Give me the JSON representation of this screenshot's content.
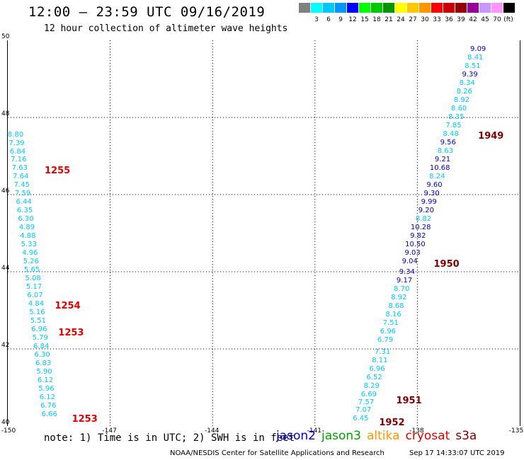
{
  "header": {
    "title": "12:00 – 23:59 UTC 09/16/2019",
    "subtitle": "12 hour collection of altimeter wave heights"
  },
  "colorbar": {
    "unit": "(ft)",
    "bins": [
      {
        "label": "",
        "color": "#808080"
      },
      {
        "label": "3",
        "color": "#00ffff"
      },
      {
        "label": "6",
        "color": "#00c8ff"
      },
      {
        "label": "9",
        "color": "#0096ff"
      },
      {
        "label": "12",
        "color": "#0000ff"
      },
      {
        "label": "15",
        "color": "#00ff00"
      },
      {
        "label": "18",
        "color": "#00c800"
      },
      {
        "label": "21",
        "color": "#009600"
      },
      {
        "label": "24",
        "color": "#ffff00"
      },
      {
        "label": "27",
        "color": "#ffc800"
      },
      {
        "label": "30",
        "color": "#ff9600"
      },
      {
        "label": "33",
        "color": "#ff0000"
      },
      {
        "label": "36",
        "color": "#c80000"
      },
      {
        "label": "39",
        "color": "#960000"
      },
      {
        "label": "42",
        "color": "#960096"
      },
      {
        "label": "45",
        "color": "#c896ff"
      },
      {
        "label": "70",
        "color": "#ff96ff"
      },
      {
        "label": "",
        "color": "#000000"
      }
    ]
  },
  "axes": {
    "lat_labels": [
      "50",
      "48",
      "46",
      "44",
      "42",
      "40"
    ],
    "lon_labels": [
      "-150",
      "-147",
      "-144",
      "-141",
      "-138",
      "-135"
    ]
  },
  "map_data": {
    "extent": {
      "lon": [
        -150,
        -135
      ],
      "lat": [
        40,
        50
      ]
    },
    "tracks": [
      {
        "satellite": "jason3_left",
        "color": "#00c8ff",
        "points": [
          {
            "lon": -149.75,
            "lat": 47.55,
            "v": "8.80"
          },
          {
            "lon": -149.72,
            "lat": 47.33,
            "v": "7.39"
          },
          {
            "lon": -149.69,
            "lat": 47.11,
            "v": "6.84"
          },
          {
            "lon": -149.66,
            "lat": 46.89,
            "v": "7.16"
          },
          {
            "lon": -149.63,
            "lat": 46.67,
            "v": "7.63"
          },
          {
            "lon": -149.6,
            "lat": 46.45,
            "v": "7.64"
          },
          {
            "lon": -149.57,
            "lat": 46.23,
            "v": "7.45"
          },
          {
            "lon": -149.54,
            "lat": 46.01,
            "v": "7.59"
          },
          {
            "lon": -149.51,
            "lat": 45.79,
            "v": "6.44"
          },
          {
            "lon": -149.48,
            "lat": 45.57,
            "v": "6.35"
          },
          {
            "lon": -149.45,
            "lat": 45.35,
            "v": "6.30"
          },
          {
            "lon": -149.42,
            "lat": 45.13,
            "v": "4.89"
          },
          {
            "lon": -149.39,
            "lat": 44.91,
            "v": "4.88"
          },
          {
            "lon": -149.36,
            "lat": 44.69,
            "v": "5.33"
          },
          {
            "lon": -149.33,
            "lat": 44.47,
            "v": "4.96"
          },
          {
            "lon": -149.3,
            "lat": 44.25,
            "v": "5.26"
          },
          {
            "lon": -149.27,
            "lat": 44.03,
            "v": "5.65"
          },
          {
            "lon": -149.24,
            "lat": 43.81,
            "v": "5.08"
          },
          {
            "lon": -149.21,
            "lat": 43.59,
            "v": "5.17"
          },
          {
            "lon": -149.18,
            "lat": 43.37,
            "v": "6.07"
          },
          {
            "lon": -149.15,
            "lat": 43.15,
            "v": "4.84"
          },
          {
            "lon": -149.12,
            "lat": 42.93,
            "v": "5.16"
          },
          {
            "lon": -149.09,
            "lat": 42.71,
            "v": "5.51"
          },
          {
            "lon": -149.06,
            "lat": 42.49,
            "v": "6.96"
          },
          {
            "lon": -149.03,
            "lat": 42.27,
            "v": "5.79"
          },
          {
            "lon": -149.0,
            "lat": 42.05,
            "v": "6.84"
          },
          {
            "lon": -148.97,
            "lat": 41.83,
            "v": "6.30"
          },
          {
            "lon": -148.94,
            "lat": 41.61,
            "v": "6.83"
          },
          {
            "lon": -148.91,
            "lat": 41.39,
            "v": "5.90"
          },
          {
            "lon": -148.88,
            "lat": 41.17,
            "v": "6.12"
          },
          {
            "lon": -148.85,
            "lat": 40.95,
            "v": "5.96"
          },
          {
            "lon": -148.82,
            "lat": 40.73,
            "v": "6.12"
          },
          {
            "lon": -148.79,
            "lat": 40.51,
            "v": "6.76"
          },
          {
            "lon": -148.76,
            "lat": 40.29,
            "v": "6.66"
          }
        ]
      },
      {
        "satellite": "mixed_right",
        "points": [
          {
            "lon": -136.2,
            "lat": 49.76,
            "v": "9.09",
            "c": "#0000c8"
          },
          {
            "lon": -136.28,
            "lat": 49.54,
            "v": "8.41",
            "c": "#00c8ff"
          },
          {
            "lon": -136.36,
            "lat": 49.32,
            "v": "8.51",
            "c": "#00c8ff"
          },
          {
            "lon": -136.44,
            "lat": 49.1,
            "v": "9.39",
            "c": "#0000c8"
          },
          {
            "lon": -136.52,
            "lat": 48.88,
            "v": "8.34",
            "c": "#00c8ff"
          },
          {
            "lon": -136.6,
            "lat": 48.66,
            "v": "8.26",
            "c": "#00c8ff"
          },
          {
            "lon": -136.68,
            "lat": 48.44,
            "v": "8.92",
            "c": "#00c8ff"
          },
          {
            "lon": -136.76,
            "lat": 48.22,
            "v": "8.60",
            "c": "#00c8ff"
          },
          {
            "lon": -136.84,
            "lat": 48.0,
            "v": "8.35",
            "c": "#00c8ff"
          },
          {
            "lon": -136.92,
            "lat": 47.78,
            "v": "7.85",
            "c": "#00c8ff"
          },
          {
            "lon": -137.0,
            "lat": 47.56,
            "v": "8.48",
            "c": "#00c8ff"
          },
          {
            "lon": -137.08,
            "lat": 47.34,
            "v": "9.56",
            "c": "#0000c8"
          },
          {
            "lon": -137.16,
            "lat": 47.12,
            "v": "8.63",
            "c": "#00c8ff"
          },
          {
            "lon": -137.24,
            "lat": 46.9,
            "v": "9.21",
            "c": "#0000c8"
          },
          {
            "lon": -137.32,
            "lat": 46.68,
            "v": "10.68",
            "c": "#0000c8"
          },
          {
            "lon": -137.4,
            "lat": 46.46,
            "v": "8.24",
            "c": "#00c8ff"
          },
          {
            "lon": -137.48,
            "lat": 46.24,
            "v": "9.60",
            "c": "#0000c8"
          },
          {
            "lon": -137.56,
            "lat": 46.02,
            "v": "9.30",
            "c": "#0000c8"
          },
          {
            "lon": -137.64,
            "lat": 45.8,
            "v": "9.99",
            "c": "#0000c8"
          },
          {
            "lon": -137.72,
            "lat": 45.58,
            "v": "9.20",
            "c": "#0000c8"
          },
          {
            "lon": -137.8,
            "lat": 45.36,
            "v": "8.82",
            "c": "#00c8ff"
          },
          {
            "lon": -137.88,
            "lat": 45.14,
            "v": "10.28",
            "c": "#0000c8"
          },
          {
            "lon": -137.96,
            "lat": 44.92,
            "v": "9.82",
            "c": "#0000c8"
          },
          {
            "lon": -138.04,
            "lat": 44.7,
            "v": "10.50",
            "c": "#0000c8"
          },
          {
            "lon": -138.12,
            "lat": 44.48,
            "v": "9.03",
            "c": "#0000c8"
          },
          {
            "lon": -138.2,
            "lat": 44.26,
            "v": "9.04",
            "c": "#0000c8"
          },
          {
            "lon": -138.28,
            "lat": 43.98,
            "v": "9.34",
            "c": "#0000c8"
          },
          {
            "lon": -138.36,
            "lat": 43.76,
            "v": "9.17",
            "c": "#0000c8"
          },
          {
            "lon": -138.44,
            "lat": 43.54,
            "v": "8.70",
            "c": "#00c8ff"
          },
          {
            "lon": -138.52,
            "lat": 43.32,
            "v": "8.92",
            "c": "#00c8ff"
          },
          {
            "lon": -138.6,
            "lat": 43.1,
            "v": "8.68",
            "c": "#00c8ff"
          },
          {
            "lon": -138.68,
            "lat": 42.88,
            "v": "8.16",
            "c": "#00c8ff"
          },
          {
            "lon": -138.76,
            "lat": 42.66,
            "v": "7.51",
            "c": "#00c8ff"
          },
          {
            "lon": -138.84,
            "lat": 42.44,
            "v": "6.96",
            "c": "#00c8ff"
          },
          {
            "lon": -138.92,
            "lat": 42.22,
            "v": "6.79",
            "c": "#00c8ff"
          },
          {
            "lon": -139.0,
            "lat": 41.9,
            "v": "7.31",
            "c": "#00c8ff"
          },
          {
            "lon": -139.08,
            "lat": 41.68,
            "v": "8.11",
            "c": "#00c8ff"
          },
          {
            "lon": -139.16,
            "lat": 41.46,
            "v": "6.96",
            "c": "#00c8ff"
          },
          {
            "lon": -139.24,
            "lat": 41.24,
            "v": "6.52",
            "c": "#00c8ff"
          },
          {
            "lon": -139.32,
            "lat": 41.02,
            "v": "8.29",
            "c": "#00c8ff"
          },
          {
            "lon": -139.4,
            "lat": 40.8,
            "v": "6.69",
            "c": "#00c8ff"
          },
          {
            "lon": -139.48,
            "lat": 40.6,
            "v": "7.57",
            "c": "#00c8ff"
          },
          {
            "lon": -139.56,
            "lat": 40.4,
            "v": "7.07",
            "c": "#00c8ff"
          },
          {
            "lon": -139.64,
            "lat": 40.18,
            "v": "6.45",
            "c": "#00c8ff"
          }
        ]
      }
    ],
    "pass_labels": [
      {
        "text": "1255",
        "lon": -148.9,
        "lat": 46.63,
        "color": "#e00000"
      },
      {
        "text": "1254",
        "lon": -148.6,
        "lat": 43.12,
        "color": "#e00000"
      },
      {
        "text": "1253",
        "lon": -148.5,
        "lat": 42.43,
        "color": "#e00000"
      },
      {
        "text": "1253",
        "lon": -148.1,
        "lat": 40.18,
        "color": "#e00000"
      },
      {
        "text": "1949",
        "lon": -136.2,
        "lat": 47.52,
        "color": "#800000"
      },
      {
        "text": "1950",
        "lon": -137.5,
        "lat": 44.2,
        "color": "#800000"
      },
      {
        "text": "1951",
        "lon": -138.6,
        "lat": 40.66,
        "color": "#800000"
      },
      {
        "text": "1952",
        "lon": -139.1,
        "lat": 40.1,
        "color": "#800000"
      }
    ]
  },
  "footer": {
    "note": "note:  1) Time is in UTC;  2) SWH is in feet",
    "legend": [
      {
        "name": "jason2",
        "color": "#0000c8"
      },
      {
        "name": "jason3",
        "color": "#00a000"
      },
      {
        "name": "altika",
        "color": "#ff9600"
      },
      {
        "name": "cryosat",
        "color": "#e00000"
      },
      {
        "name": "s3a",
        "color": "#800000"
      }
    ],
    "credit": "NOAA/NESDIS Center for Satellite Applications and Research",
    "timestamp": "Sep 17 14:33:07 UTC 2019"
  }
}
